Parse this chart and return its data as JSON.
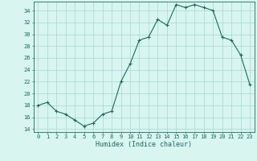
{
  "x": [
    0,
    1,
    2,
    3,
    4,
    5,
    6,
    7,
    8,
    9,
    10,
    11,
    12,
    13,
    14,
    15,
    16,
    17,
    18,
    19,
    20,
    21,
    22,
    23
  ],
  "y": [
    18.0,
    18.5,
    17.0,
    16.5,
    15.5,
    14.5,
    15.0,
    16.5,
    17.0,
    22.0,
    25.0,
    29.0,
    29.5,
    32.5,
    31.5,
    35.0,
    34.5,
    35.0,
    34.5,
    34.0,
    29.5,
    29.0,
    26.5,
    21.5
  ],
  "xlabel": "Humidex (Indice chaleur)",
  "xlim": [
    -0.5,
    23.5
  ],
  "ylim": [
    13.5,
    35.5
  ],
  "yticks": [
    14,
    16,
    18,
    20,
    22,
    24,
    26,
    28,
    30,
    32,
    34
  ],
  "xticks": [
    0,
    1,
    2,
    3,
    4,
    5,
    6,
    7,
    8,
    9,
    10,
    11,
    12,
    13,
    14,
    15,
    16,
    17,
    18,
    19,
    20,
    21,
    22,
    23
  ],
  "line_color": "#1a6b5a",
  "marker_color": "#1a6b5a",
  "bg_color": "#d8f5f0",
  "grid_color": "#a8d8d0",
  "tick_color": "#1a6b5a",
  "label_color": "#1a6b5a",
  "font_family": "monospace",
  "tick_labelsize": 5.0,
  "xlabel_fontsize": 6.0
}
